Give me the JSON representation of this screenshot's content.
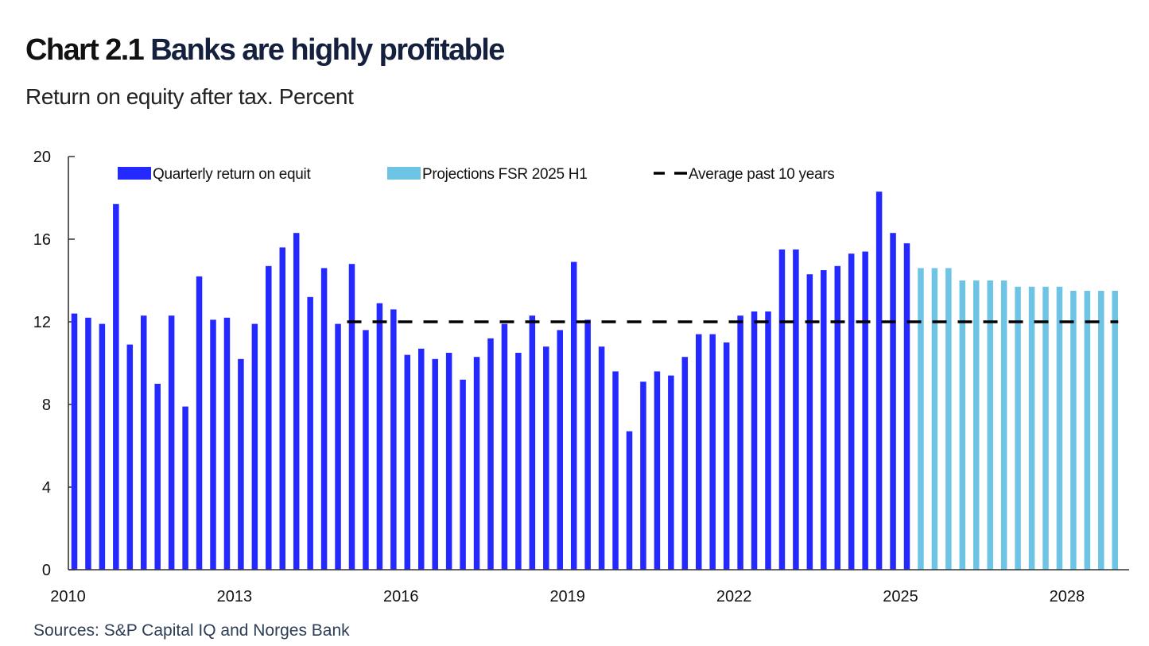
{
  "header": {
    "chart_number": "Chart 2.1",
    "title": "Banks are highly profitable",
    "subtitle": "Return on equity after tax. Percent"
  },
  "footer": {
    "sources": "Sources: S&P Capital IQ and Norges Bank"
  },
  "colors": {
    "actual": "#2329ff",
    "projection": "#6ec4e4",
    "average_line": "#000000",
    "axis": "#333333"
  },
  "chart_data": {
    "type": "bar",
    "title": "Banks are highly profitable",
    "subtitle": "Return on equity after tax. Percent",
    "xlabel": "",
    "ylabel": "Percent",
    "ylim": [
      0,
      20
    ],
    "yticks": [
      0,
      4,
      8,
      12,
      16,
      20
    ],
    "xticks": [
      "2010",
      "2013",
      "2016",
      "2019",
      "2022",
      "2025",
      "2028"
    ],
    "x_start": "2010Q1",
    "frequency": "quarterly",
    "grid": false,
    "legend_position": "top",
    "legend": [
      {
        "label": "Quarterly return on equit",
        "kind": "bar",
        "series": "actual"
      },
      {
        "label": "Projections FSR 2025 H1",
        "kind": "bar",
        "series": "projection"
      },
      {
        "label": "Average past 10 years",
        "kind": "dashed-line",
        "series": "average"
      }
    ],
    "series": [
      {
        "name": "Quarterly return on equit",
        "key": "actual",
        "start": "2010Q1",
        "values": [
          12.4,
          12.2,
          11.9,
          17.7,
          10.9,
          12.3,
          9.0,
          12.3,
          7.9,
          14.2,
          12.1,
          12.2,
          10.2,
          11.9,
          14.7,
          15.6,
          16.3,
          13.2,
          14.6,
          11.9,
          14.8,
          11.6,
          12.9,
          12.6,
          10.4,
          10.7,
          10.2,
          10.5,
          9.2,
          10.3,
          11.2,
          11.9,
          10.5,
          12.3,
          10.8,
          11.6,
          14.9,
          12.1,
          10.8,
          9.6,
          6.7,
          9.1,
          9.6,
          9.4,
          10.3,
          11.4,
          11.4,
          11.0,
          12.3,
          12.5,
          12.5,
          15.5,
          15.5,
          14.3,
          14.5,
          14.7,
          15.3,
          15.4,
          18.3,
          16.3,
          15.8
        ]
      },
      {
        "name": "Projections FSR 2025 H1",
        "key": "projection",
        "start": "2025Q2",
        "values": [
          14.6,
          14.6,
          14.6,
          14.0,
          14.0,
          14.0,
          14.0,
          13.7,
          13.7,
          13.7,
          13.7,
          13.5,
          13.5,
          13.5,
          13.5
        ]
      },
      {
        "name": "Average past 10 years",
        "key": "average",
        "type": "line",
        "style": "dashed",
        "value": 12.0,
        "from": "2015Q1",
        "to": "2028Q4"
      }
    ]
  }
}
